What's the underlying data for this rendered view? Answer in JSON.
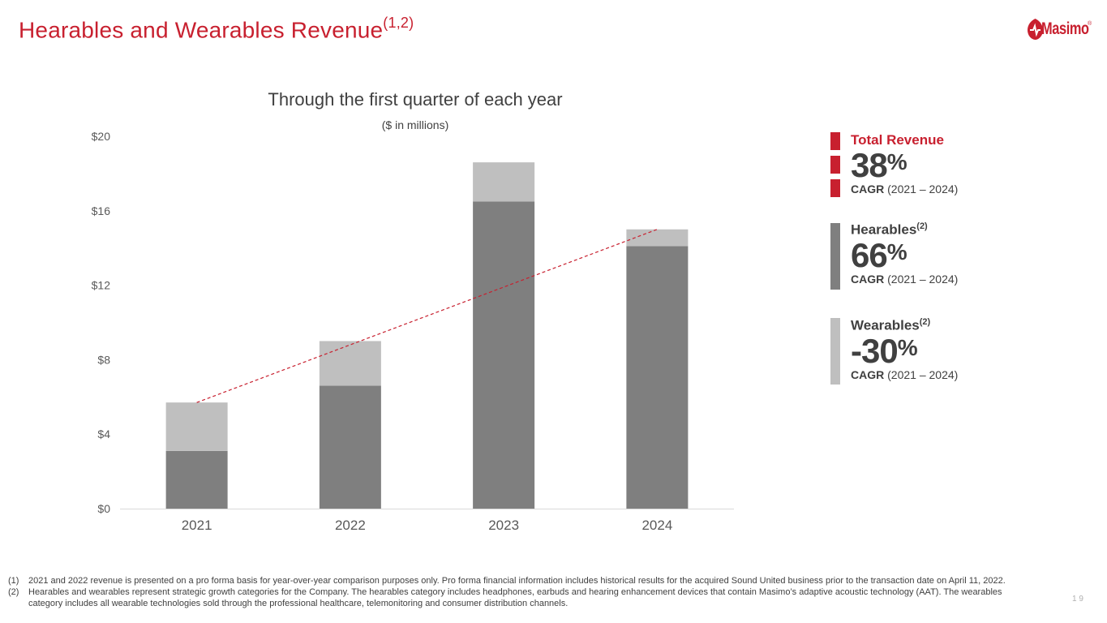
{
  "title": {
    "text": "Hearables and Wearables Revenue",
    "sup": "(1,2)"
  },
  "logo": {
    "text": "Masimo",
    "reg": "®"
  },
  "chart_data": {
    "type": "bar",
    "stacked": true,
    "title": "Through the first quarter of each year",
    "subtitle": "($ in millions)",
    "categories": [
      "2021",
      "2022",
      "2023",
      "2024"
    ],
    "series": [
      {
        "name": "Hearables",
        "color": "#7f7f7f",
        "values": [
          3.1,
          6.6,
          16.5,
          14.1
        ]
      },
      {
        "name": "Wearables",
        "color": "#bfbfbf",
        "values": [
          2.6,
          2.4,
          2.1,
          0.9
        ]
      }
    ],
    "ylim": [
      0,
      20
    ],
    "yticks": [
      0,
      4,
      8,
      12,
      16,
      20
    ],
    "ytick_labels": [
      "$0",
      "$4",
      "$8",
      "$12",
      "$16",
      "$20"
    ],
    "trendline": {
      "from": 5.7,
      "to": 15.0,
      "color": "#c8202f",
      "style": "dashed"
    }
  },
  "legend": [
    {
      "name": "Total Revenue",
      "sup": "",
      "pct": "38",
      "pct_sign": "%",
      "cagr_label": "CAGR",
      "cagr_range": "(2021 – 2024)",
      "color": "#c8202f",
      "head_color": "#c8202f"
    },
    {
      "name": "Hearables",
      "sup": "(2)",
      "pct": "66",
      "pct_sign": "%",
      "cagr_label": "CAGR",
      "cagr_range": "(2021 – 2024)",
      "color": "#7f7f7f",
      "head_color": "#404040"
    },
    {
      "name": "Wearables",
      "sup": "(2)",
      "pct": "-30",
      "pct_sign": "%",
      "cagr_label": "CAGR",
      "cagr_range": "(2021 – 2024)",
      "color": "#bfbfbf",
      "head_color": "#404040"
    }
  ],
  "footnotes": [
    {
      "num": "(1)",
      "text": "2021 and 2022 revenue is presented on a pro forma basis for year-over-year comparison purposes only.   Pro forma financial information includes historical results for the acquired Sound United business prior to the transaction date on April 11, 2022."
    },
    {
      "num": "(2)",
      "text": "Hearables and wearables represent strategic growth categories for the Company.  The hearables category includes headphones, earbuds and hearing enhancement devices that contain Masimo’s adaptive acoustic technology (AAT). The wearables category includes all wearable technologies sold through the professional healthcare, telemonitoring and consumer distribution channels."
    }
  ],
  "page_number": "1 9"
}
